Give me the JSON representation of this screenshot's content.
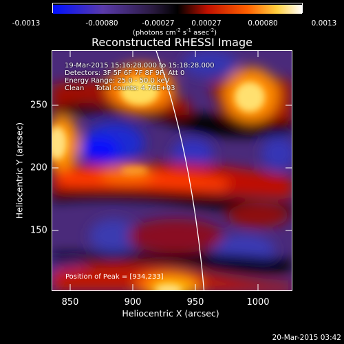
{
  "colorbar": {
    "tick_labels": [
      "-0.0013",
      "-0.00080",
      "-0.00027",
      "0.00027",
      "0.00080",
      "0.0013"
    ],
    "range": [
      -0.0013,
      0.0013
    ],
    "units_text": "(photons cm",
    "units_exp1": "-2",
    "units_mid": " s",
    "units_exp2": "-1",
    "units_tail": " asec",
    "units_exp3": "-2",
    "units_close": ")"
  },
  "title": "Reconstructed RHESSI Image",
  "annotations": {
    "time_range": "19-Mar-2015 15:16:28.000 to 15:18:28.000",
    "detectors": "Detectors: 3F 5F 6F 7F 8F 9F, Att 0",
    "energy": "Energy Range: 25.0 - 50.0 keV",
    "algorithm": "Clean     Total counts: 4.76E+03",
    "peak": "Position of Peak = [934,233]"
  },
  "axes": {
    "xlabel": "Heliocentric X (arcsec)",
    "ylabel": "Heliocentric Y (arcsec)",
    "xticks": [
      "850",
      "900",
      "950",
      "1000"
    ],
    "yticks": [
      "150",
      "200",
      "250"
    ],
    "xlim": [
      835,
      1027
    ],
    "ylim": [
      97,
      289
    ]
  },
  "timestamp": "20-Mar-2015 03:42",
  "colors": {
    "background": "#000000",
    "text": "#ffffff",
    "colormap": [
      "#0000ff",
      "#3a2aa0",
      "#5a3a9a",
      "#000000",
      "#8a0000",
      "#ff3000",
      "#ffa000",
      "#ffffff"
    ]
  }
}
